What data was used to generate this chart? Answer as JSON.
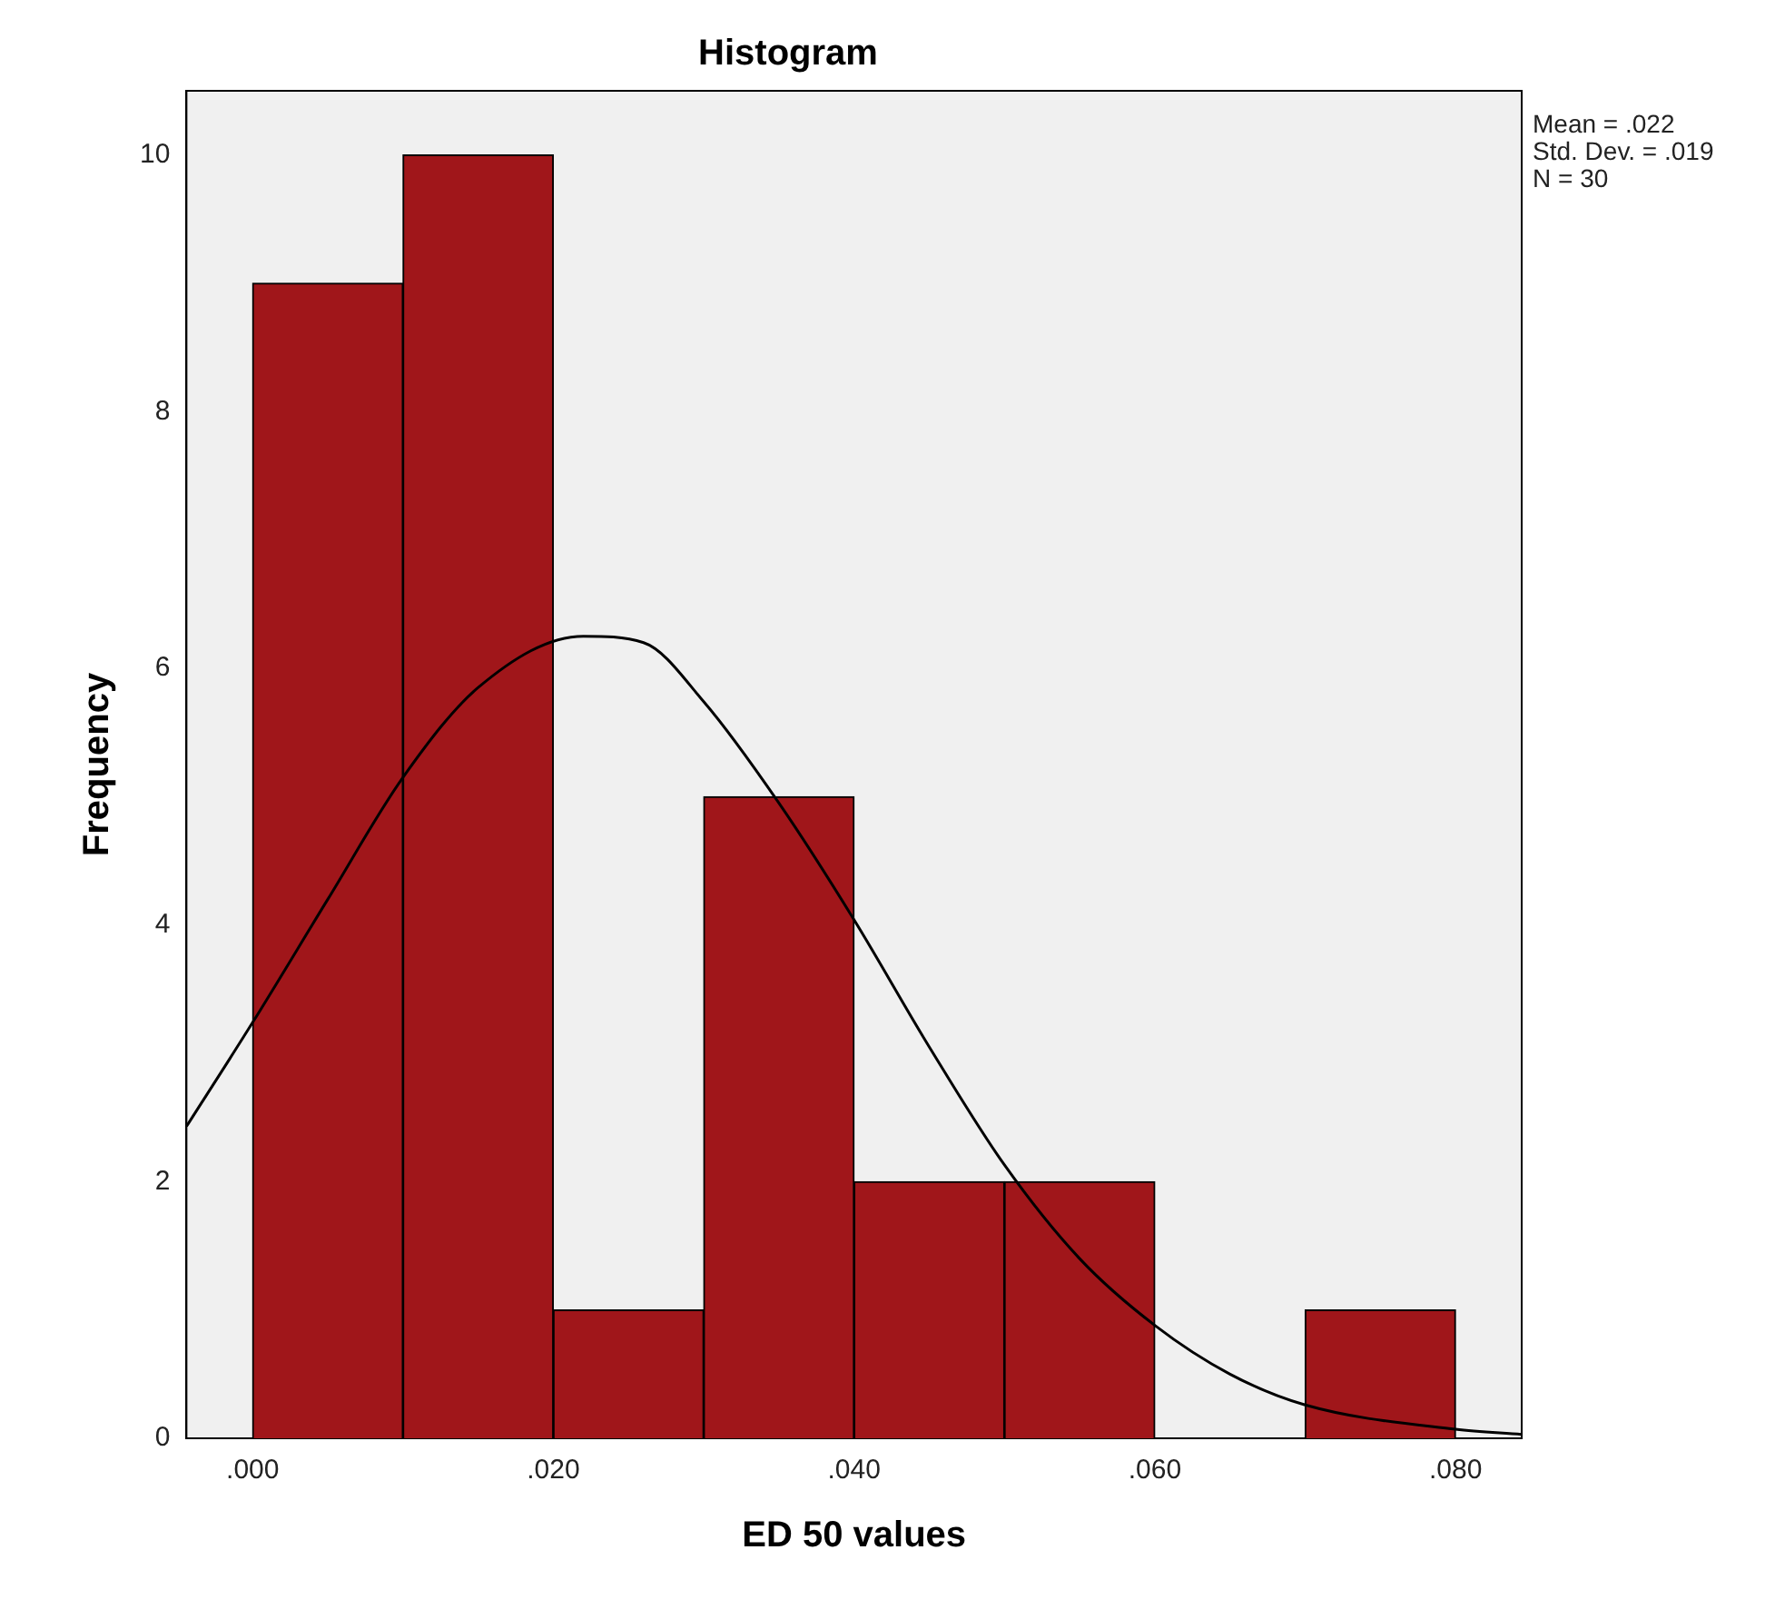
{
  "chart_data": {
    "type": "histogram",
    "title": "Histogram",
    "xlabel": "ED 50 values",
    "ylabel": "Frequency",
    "bins": [
      0,
      0.01,
      0.02,
      0.03,
      0.04,
      0.05,
      0.06,
      0.07,
      0.08
    ],
    "values": [
      9,
      10,
      1,
      5,
      2,
      2,
      0,
      1
    ],
    "color": "#a0161a",
    "series": [
      {
        "type": "line",
        "color": "#000000",
        "x": [
          -0.0044,
          0,
          0.005,
          0.01,
          0.015,
          0.022,
          0.026,
          0.03,
          0.035,
          0.04,
          0.045,
          0.05,
          0.055,
          0.06,
          0.065,
          0.07,
          0.08,
          0.0844
        ],
        "values": [
          2.43,
          3.24,
          4.2,
          5.15,
          5.85,
          6.25,
          6.2,
          5.74,
          4.95,
          4.04,
          3.05,
          2.13,
          1.4,
          0.88,
          0.5,
          0.26,
          0.07,
          0.03
        ]
      }
    ],
    "xlim": [
      -0.0044,
      0.0844
    ],
    "xticks": [
      {
        "value": 0,
        "label": ".000"
      },
      {
        "value": 0.02,
        "label": ".020"
      },
      {
        "value": 0.04,
        "label": ".040"
      },
      {
        "value": 0.06,
        "label": ".060"
      },
      {
        "value": 0.08,
        "label": ".080"
      }
    ],
    "ylim": [
      0,
      10.5
    ],
    "yticks": [
      0,
      2,
      4,
      6,
      8,
      10
    ],
    "grid": false,
    "legend": false,
    "marker": "none",
    "line_style": "solid",
    "annotations": [
      "Mean = .022",
      "Std. Dev. = .019",
      "N = 30"
    ]
  }
}
